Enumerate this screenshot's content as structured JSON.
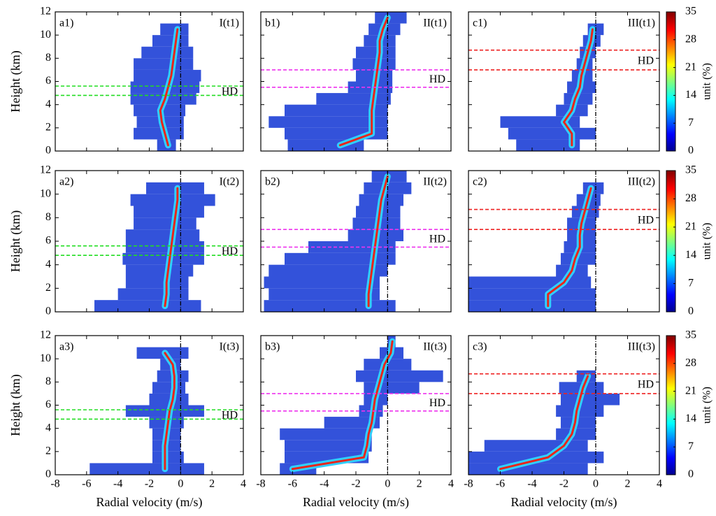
{
  "chart_data": {
    "type": "cfad",
    "xlabel": "Radial velocity (m/s)",
    "ylabel": "Height (km)",
    "xlim": [
      -8,
      4
    ],
    "xticks": [
      -8,
      -6,
      -4,
      -2,
      0,
      2,
      4
    ],
    "ylim": [
      0,
      12
    ],
    "yticks": [
      0,
      2,
      4,
      6,
      8,
      10,
      12
    ],
    "colorbar": {
      "label": "unit (%)",
      "lim": [
        0,
        35
      ],
      "ticks": [
        0,
        7,
        14,
        21,
        28,
        35
      ]
    },
    "heights": [
      0.5,
      1.5,
      2.5,
      3.5,
      4.5,
      5.5,
      6.5,
      7.5,
      8.5,
      9.5,
      10.5,
      11.5
    ],
    "panels": [
      {
        "label": "a1)",
        "title": "I(t1)",
        "hd_label": "HD",
        "hd_lines": [
          5.6,
          4.8
        ],
        "hd_color": "#22dd22",
        "left": [
          -1.5,
          -3.0,
          -2.8,
          -3.0,
          -3.2,
          -3.2,
          -3.0,
          -3.0,
          -2.5,
          -1.8,
          -1.3,
          null
        ],
        "right": [
          -0.3,
          0.2,
          0.2,
          0.3,
          1.0,
          1.2,
          1.3,
          0.8,
          0.8,
          0.5,
          0.5,
          null
        ],
        "mode": [
          -0.8,
          -1.0,
          -1.2,
          -1.3,
          -1.0,
          -0.8,
          -0.6,
          -0.5,
          -0.4,
          -0.3,
          -0.2,
          null
        ]
      },
      {
        "label": "b1)",
        "title": "II(t1)",
        "hd_label": "HD",
        "hd_lines": [
          7.0,
          5.5
        ],
        "hd_color": "#ee33ee",
        "left": [
          -6.3,
          -6.5,
          -7.5,
          -6.5,
          -4.5,
          -2.5,
          -2.0,
          -2.2,
          -2.0,
          -1.5,
          -1.2,
          -0.8
        ],
        "right": [
          -1.5,
          0,
          0,
          0,
          0.2,
          0.3,
          0.3,
          0.5,
          0.5,
          0.5,
          0.8,
          1.2
        ],
        "mode": [
          -3.0,
          -1.0,
          -1.0,
          -1.0,
          -0.9,
          -0.8,
          -0.7,
          -0.6,
          -0.5,
          -0.5,
          -0.3,
          0
        ]
      },
      {
        "label": "c1)",
        "title": "III(t1)",
        "hd_label": "HD",
        "hd_lines": [
          8.7,
          7.0
        ],
        "hd_color": "#ee2222",
        "left": [
          -5.0,
          -5.5,
          -6.0,
          -2.5,
          -2.0,
          -1.8,
          -1.5,
          -1.2,
          -1.0,
          -0.8,
          -0.5,
          null
        ],
        "right": [
          -1.0,
          0,
          -1.0,
          -0.5,
          -0.2,
          0,
          -0.2,
          -0.2,
          0,
          0.3,
          0.5,
          null
        ],
        "mode": [
          -1.5,
          -1.5,
          -2.0,
          -1.5,
          -1.3,
          -1.0,
          -0.9,
          -0.7,
          -0.5,
          -0.3,
          -0.2,
          null
        ]
      },
      {
        "label": "a2)",
        "title": "I(t2)",
        "hd_label": "HD",
        "hd_lines": [
          5.6,
          4.8
        ],
        "hd_color": "#22dd22",
        "left": [
          -5.5,
          -4.0,
          -3.5,
          -3.5,
          -3.7,
          -3.5,
          -3.5,
          -3.0,
          -3.0,
          -3.2,
          -2.2,
          null
        ],
        "right": [
          1.3,
          0.5,
          0.5,
          0.8,
          1.5,
          1.5,
          1.2,
          1.0,
          1.5,
          2.2,
          1.5,
          null
        ],
        "mode": [
          -1.0,
          -0.9,
          -0.9,
          -0.8,
          -0.7,
          -0.6,
          -0.5,
          -0.4,
          -0.3,
          -0.2,
          -0.2,
          null
        ]
      },
      {
        "label": "b2)",
        "title": "II(t2)",
        "hd_label": "HD",
        "hd_lines": [
          7.0,
          5.5
        ],
        "hd_color": "#ee33ee",
        "left": [
          -7.8,
          -7.5,
          -7.8,
          -7.5,
          -6.5,
          -5.0,
          -2.5,
          -2.2,
          -2.0,
          -1.8,
          -1.5,
          -1.0
        ],
        "right": [
          0.5,
          -0.5,
          -0.5,
          0,
          0.5,
          0.5,
          1.0,
          0.8,
          0.8,
          1.0,
          1.5,
          1.2
        ],
        "mode": [
          -1.2,
          -1.2,
          -1.1,
          -1.0,
          -0.9,
          -0.8,
          -0.7,
          -0.6,
          -0.5,
          -0.4,
          -0.2,
          0
        ]
      },
      {
        "label": "c2)",
        "title": "III(t2)",
        "hd_label": "HD",
        "hd_lines": [
          8.7,
          7.0
        ],
        "hd_color": "#ee2222",
        "left": [
          -8.0,
          -8.0,
          -8.0,
          -2.5,
          -2.2,
          -2.0,
          -1.8,
          -1.8,
          -1.5,
          -1.2,
          -0.8,
          null
        ],
        "right": [
          0,
          0,
          -0.3,
          -0.5,
          0,
          0,
          0,
          0,
          0.2,
          0.3,
          0.5,
          null
        ],
        "mode": [
          -3.0,
          -3.0,
          -2.0,
          -1.5,
          -1.3,
          -1.0,
          -1.0,
          -0.9,
          -0.7,
          -0.5,
          -0.3,
          null
        ]
      },
      {
        "label": "a3)",
        "title": "I(t3)",
        "hd_label": "HD",
        "hd_lines": [
          5.6,
          4.8
        ],
        "hd_color": "#22dd22",
        "left": [
          -5.8,
          -1.8,
          -1.8,
          -1.8,
          -2.0,
          -3.5,
          -2.0,
          -1.8,
          -1.5,
          -1.3,
          -2.8,
          null
        ],
        "right": [
          1.5,
          0.2,
          0,
          0,
          0.2,
          1.5,
          0.5,
          0.3,
          0.5,
          0,
          0.5,
          null
        ],
        "mode": [
          -1.0,
          -1.0,
          -1.0,
          -0.9,
          -0.8,
          -0.7,
          -0.5,
          -0.4,
          -0.4,
          -0.5,
          -1.0,
          null
        ]
      },
      {
        "label": "b3)",
        "title": "II(t3)",
        "hd_label": "HD",
        "hd_lines": [
          7.0,
          5.5
        ],
        "hd_color": "#ee33ee",
        "left": [
          -6.8,
          -6.5,
          -6.5,
          -6.8,
          -4.0,
          -1.8,
          -1.5,
          -1.5,
          -2.0,
          -1.5,
          -0.5,
          0
        ],
        "right": [
          -4.5,
          -1.2,
          -1.0,
          -1.0,
          -0.5,
          -0.3,
          0,
          2.0,
          3.5,
          1.5,
          1.0,
          0.5
        ],
        "mode": [
          -6.0,
          -1.5,
          -1.3,
          -1.2,
          -1.0,
          -0.9,
          -0.8,
          -0.6,
          -0.4,
          -0.2,
          0.2,
          0.3
        ]
      },
      {
        "label": "c3)",
        "title": "III(t3)",
        "hd_label": "HD",
        "hd_lines": [
          8.7,
          7.0
        ],
        "hd_color": "#ee2222",
        "left": [
          -8.0,
          -8.0,
          -7.0,
          -2.5,
          -2.2,
          -2.5,
          -2.2,
          -2.3,
          -1.2,
          null,
          null,
          null
        ],
        "right": [
          -0.5,
          0.5,
          -0.5,
          0,
          0,
          0.5,
          1.5,
          0.5,
          0,
          null,
          null,
          null
        ],
        "mode": [
          -6.0,
          -3.0,
          -2.0,
          -1.5,
          -1.3,
          -1.2,
          -1.0,
          -0.8,
          -0.5,
          null,
          null,
          null
        ]
      }
    ]
  }
}
